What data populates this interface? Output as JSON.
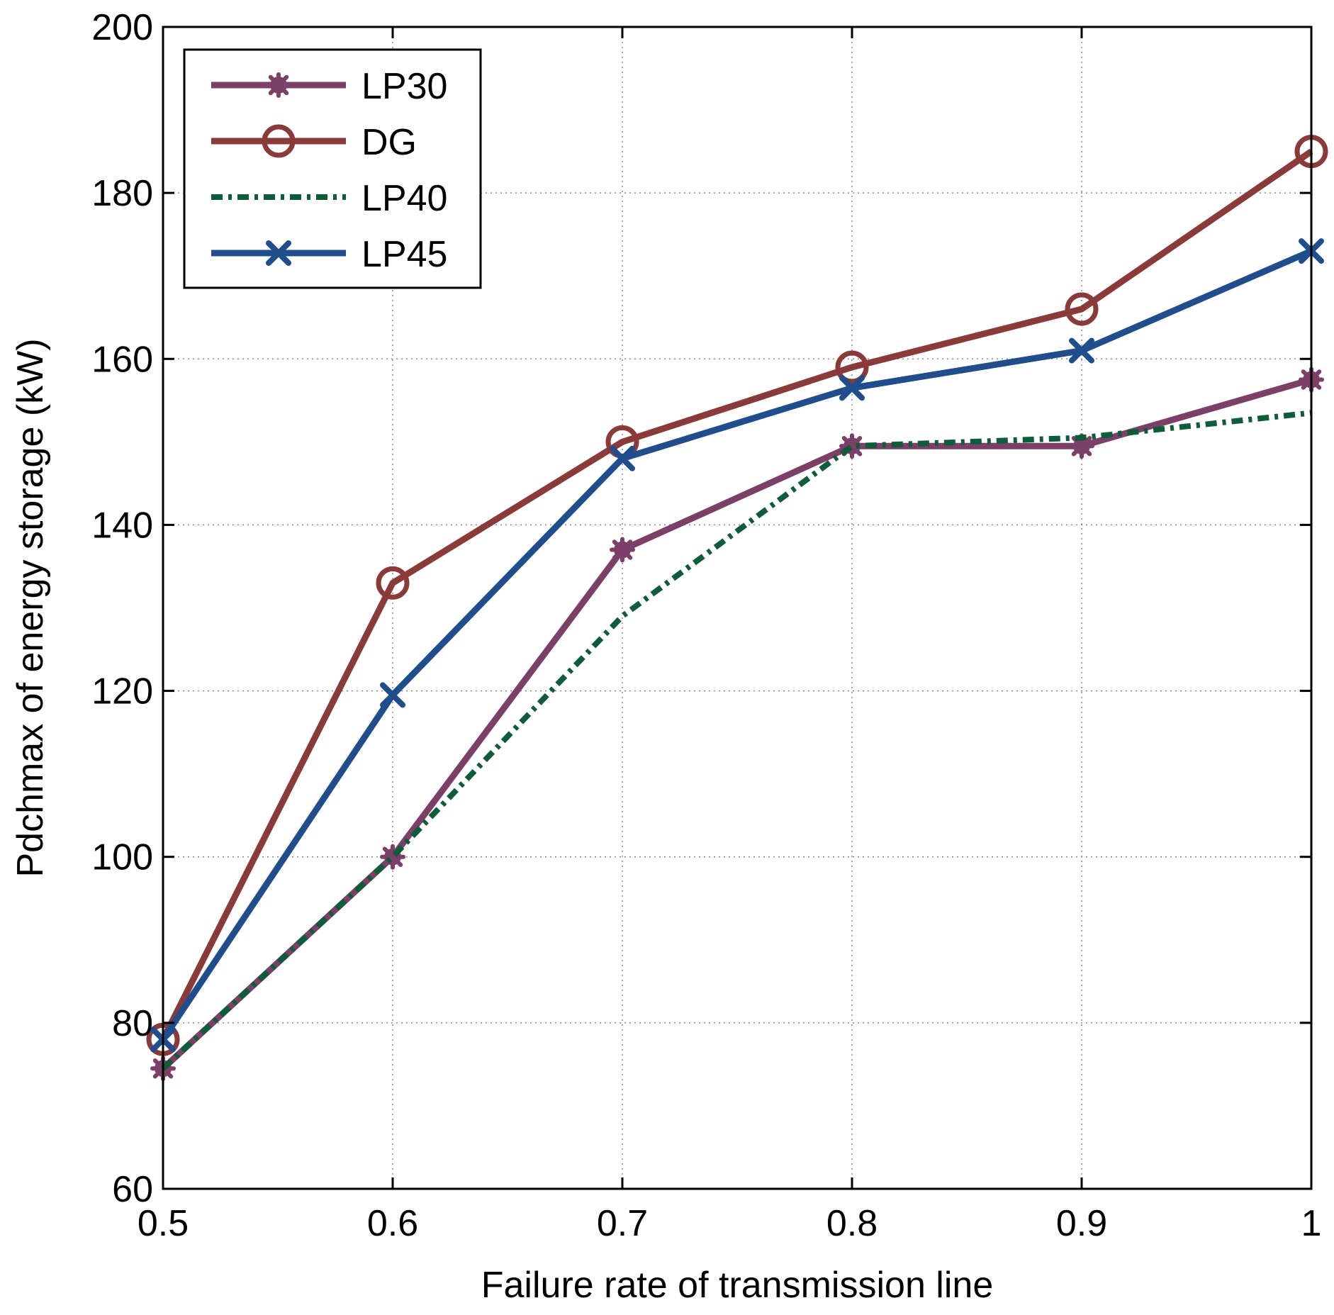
{
  "chart_data": {
    "type": "line",
    "title": "",
    "xlabel": "Failure rate of transmission line",
    "ylabel": "Pdchmax of energy storage (kW)",
    "xlim": [
      0.5,
      1.0
    ],
    "ylim": [
      60,
      200
    ],
    "xticks": [
      0.5,
      0.6,
      0.7,
      0.8,
      0.9,
      1.0
    ],
    "xtick_labels": [
      "0.5",
      "0.6",
      "0.7",
      "0.8",
      "0.9",
      "1"
    ],
    "yticks": [
      60,
      80,
      100,
      120,
      140,
      160,
      180,
      200
    ],
    "ytick_labels": [
      "60",
      "80",
      "100",
      "120",
      "140",
      "160",
      "180",
      "200"
    ],
    "grid": true,
    "legend_position": "top-left",
    "x": [
      0.5,
      0.6,
      0.7,
      0.8,
      0.9,
      1.0
    ],
    "series": [
      {
        "name": "LP30",
        "values": [
          74.5,
          100,
          137,
          149.5,
          149.5,
          157.5
        ],
        "color": "#7B3F68",
        "style": "solid",
        "marker": "asterisk"
      },
      {
        "name": "DG",
        "values": [
          78,
          133,
          150,
          159,
          166,
          185
        ],
        "color": "#8B3A3A",
        "style": "solid",
        "marker": "circle"
      },
      {
        "name": "LP40",
        "values": [
          74.5,
          100,
          129,
          149.5,
          150.5,
          153.5
        ],
        "color": "#0F5C3A",
        "style": "dashdot",
        "marker": "none"
      },
      {
        "name": "LP45",
        "values": [
          78,
          119.5,
          148,
          156.5,
          161,
          173
        ],
        "color": "#204E8C",
        "style": "solid",
        "marker": "x"
      }
    ]
  }
}
